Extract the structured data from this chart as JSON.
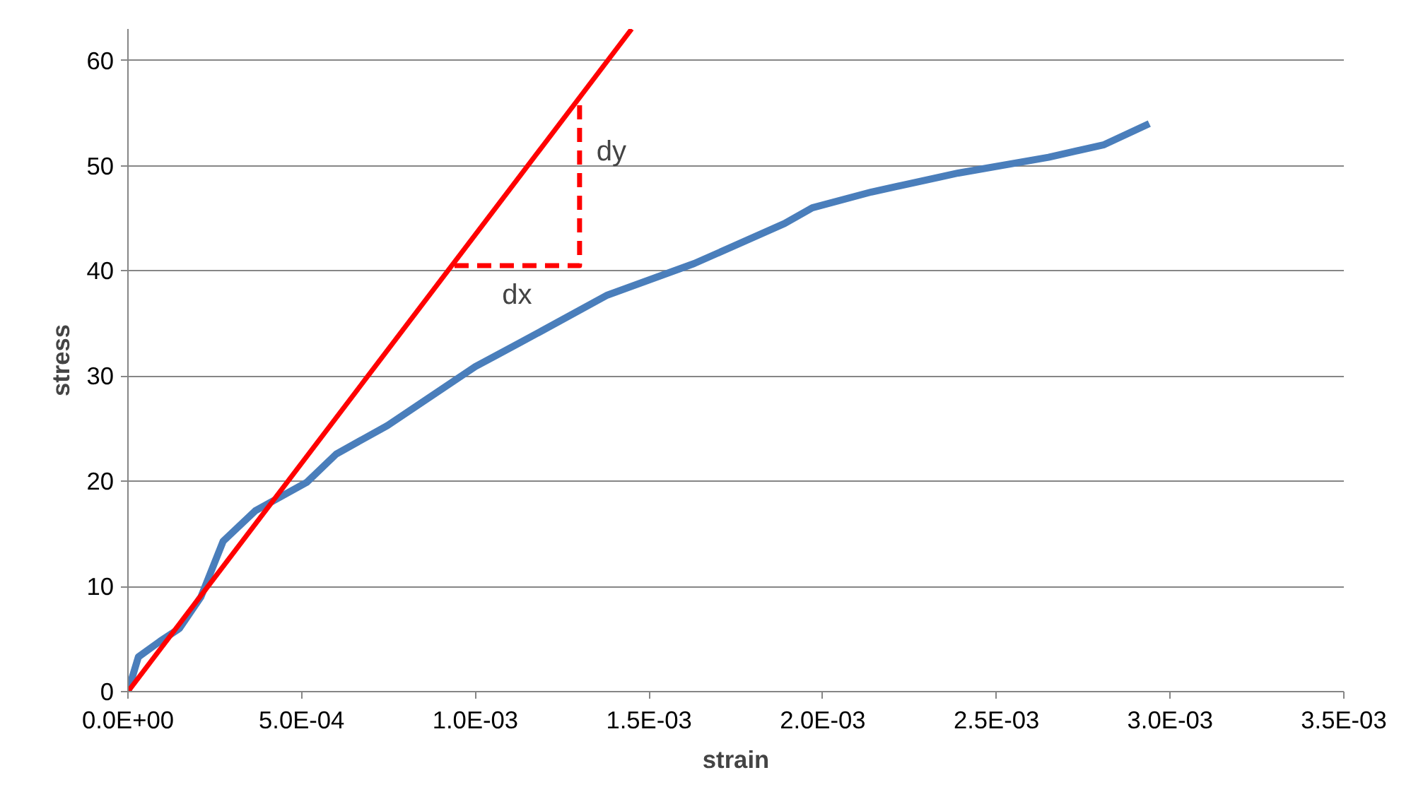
{
  "chart_data": {
    "type": "line",
    "xlabel": "strain",
    "ylabel": "stress",
    "xlim": [
      0,
      0.0035
    ],
    "ylim": [
      0,
      63
    ],
    "xticks": [
      {
        "value": 0,
        "label": "0.0E+00"
      },
      {
        "value": 0.0005,
        "label": "5.0E-04"
      },
      {
        "value": 0.001,
        "label": "1.0E-03"
      },
      {
        "value": 0.0015,
        "label": "1.5E-03"
      },
      {
        "value": 0.002,
        "label": "2.0E-03"
      },
      {
        "value": 0.0025,
        "label": "2.5E-03"
      },
      {
        "value": 0.003,
        "label": "3.0E-03"
      },
      {
        "value": 0.0035,
        "label": "3.5E-03"
      }
    ],
    "yticks": [
      0,
      10,
      20,
      30,
      40,
      50,
      60
    ],
    "grid": "y",
    "marker": "none",
    "series": [
      {
        "color": "#4a7ebb",
        "line_style": "solid",
        "x": [
          0,
          3e-05,
          9.3e-05,
          0.000148,
          0.00021,
          0.000274,
          0.000367,
          0.000515,
          0.0006,
          0.000747,
          0.001,
          0.00113,
          0.00138,
          0.00163,
          0.00189,
          0.00197,
          0.00214,
          0.00239,
          0.00265,
          0.00281,
          0.00294
        ],
        "values": [
          0,
          3.3,
          4.8,
          6,
          9,
          14.3,
          17.2,
          19.9,
          22.6,
          25.3,
          30.9,
          33.2,
          37.7,
          40.7,
          44.5,
          46,
          47.5,
          49.3,
          50.8,
          52,
          54
        ]
      },
      {
        "color": "#ff0000",
        "line_style": "solid",
        "x": [
          0,
          0.00145
        ],
        "values": [
          0,
          63
        ]
      },
      {
        "color": "#ff0000",
        "line_style": "dashed",
        "x": [
          0.00094,
          0.0013,
          0.0013
        ],
        "values": [
          40.5,
          40.5,
          56.5
        ]
      }
    ],
    "annotations": [
      "dy",
      "dx"
    ]
  }
}
